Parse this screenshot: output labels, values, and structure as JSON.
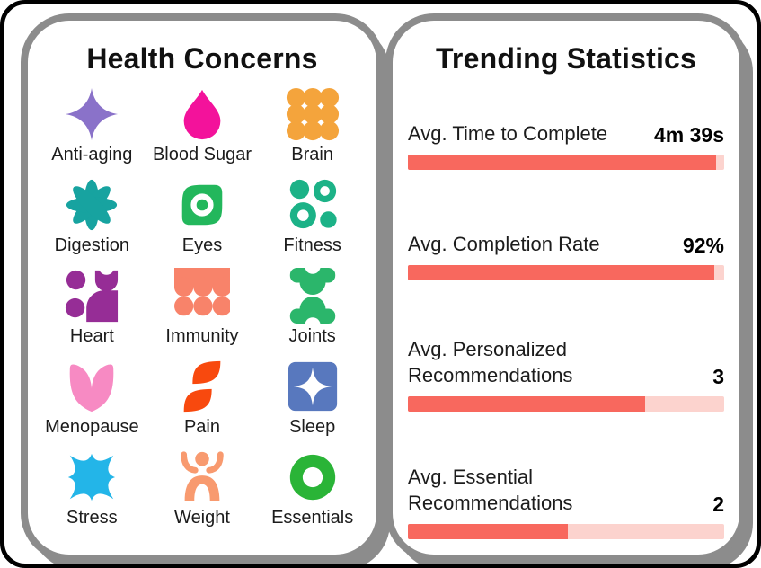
{
  "left_panel": {
    "title": "Health Concerns",
    "items": [
      {
        "label": "Anti-aging",
        "icon": "four-point-star-icon",
        "color": "#8A72C9"
      },
      {
        "label": "Blood Sugar",
        "icon": "droplet-icon",
        "color": "#F3129B"
      },
      {
        "label": "Brain",
        "icon": "nine-dots-icon",
        "color": "#F4A43C"
      },
      {
        "label": "Digestion",
        "icon": "eight-petal-flower-icon",
        "color": "#17A3A0"
      },
      {
        "label": "Eyes",
        "icon": "leaf-eye-icon",
        "color": "#23B75C"
      },
      {
        "label": "Fitness",
        "icon": "four-circles-icon",
        "color": "#1CB287"
      },
      {
        "label": "Heart",
        "icon": "abstract-heart-icon",
        "color": "#962D96"
      },
      {
        "label": "Immunity",
        "icon": "cells-star-icon",
        "color": "#F8836A"
      },
      {
        "label": "Joints",
        "icon": "joint-x-icon",
        "color": "#2BB66B"
      },
      {
        "label": "Menopause",
        "icon": "tulip-icon",
        "color": "#F78AC3"
      },
      {
        "label": "Pain",
        "icon": "two-leaves-icon",
        "color": "#F8490E"
      },
      {
        "label": "Sleep",
        "icon": "star-square-icon",
        "color": "#5878BE"
      },
      {
        "label": "Stress",
        "icon": "petal-star-icon",
        "color": "#23B5E8"
      },
      {
        "label": "Weight",
        "icon": "person-arms-up-icon",
        "color": "#F89A6F"
      },
      {
        "label": "Essentials",
        "icon": "donut-icon",
        "color": "#2AB437"
      }
    ]
  },
  "right_panel": {
    "title": "Trending Statistics",
    "bar_fill_color": "#F8685E",
    "bar_track_color": "#FCD3CE",
    "stats": [
      {
        "label": "Avg. Time to Complete",
        "value": "4m 39s",
        "percent": 97.5
      },
      {
        "label": "Avg. Completion Rate",
        "value": "92%",
        "percent": 97
      },
      {
        "label": "Avg. Personalized Recommendations",
        "value": "3",
        "percent": 75
      },
      {
        "label": "Avg. Essential Recommendations",
        "value": "2",
        "percent": 50.5
      }
    ]
  },
  "chart_data": {
    "type": "bar",
    "title": "Trending Statistics",
    "categories": [
      "Avg. Time to Complete",
      "Avg. Completion Rate",
      "Avg. Personalized Recommendations",
      "Avg. Essential Recommendations"
    ],
    "values": [
      "4m 39s",
      "92%",
      "3",
      "2"
    ],
    "bar_fill_percent": [
      97.5,
      97,
      75,
      50.5
    ],
    "orientation": "horizontal",
    "legend": "none",
    "grid": false
  }
}
